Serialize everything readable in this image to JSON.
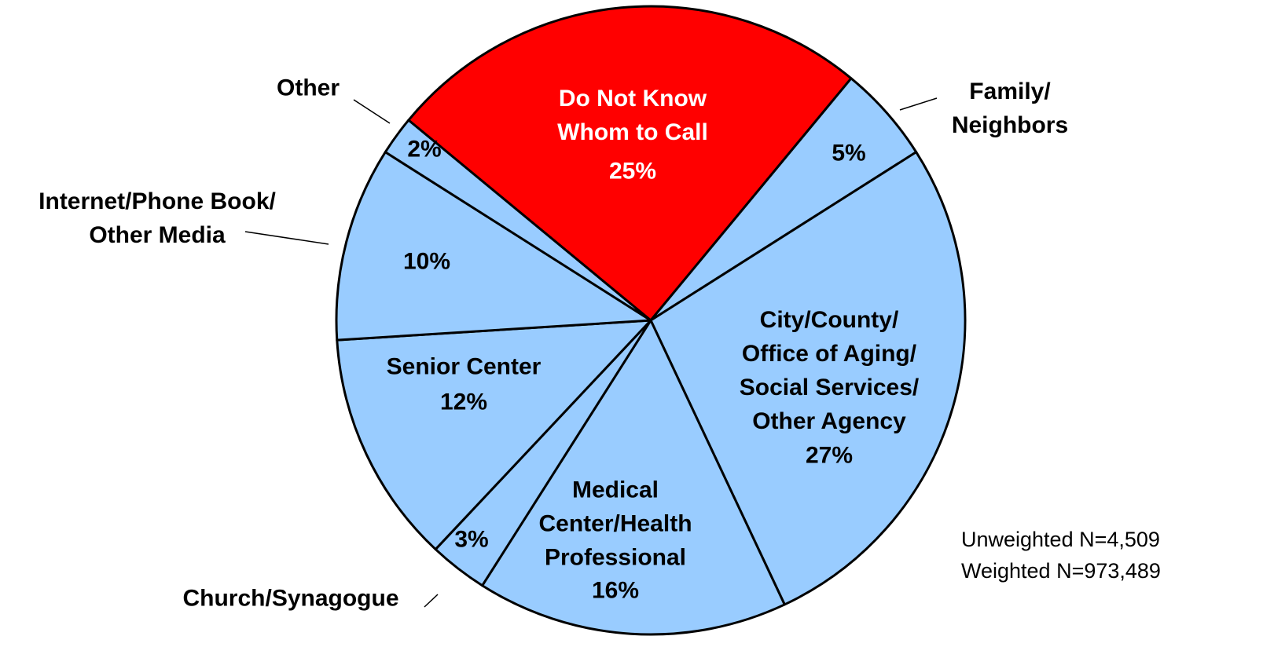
{
  "chart_data": {
    "type": "pie",
    "categories": [
      "Do Not Know\nWhom to Call",
      "Family/\nNeighbors",
      "City/County/\nOffice of Aging/\nSocial Services/\nOther Agency",
      "Medical\nCenter/Health\nProfessional",
      "Church/Synagogue",
      "Senior Center",
      "Internet/Phone Book/\nOther Media",
      "Other"
    ],
    "values": [
      25,
      5,
      27,
      16,
      3,
      12,
      10,
      2
    ],
    "value_labels": [
      "25%",
      "5%",
      "27%",
      "16%",
      "3%",
      "12%",
      "10%",
      "2%"
    ],
    "colors": [
      "#ff0000",
      "#99ccff",
      "#99ccff",
      "#99ccff",
      "#99ccff",
      "#99ccff",
      "#99ccff",
      "#99ccff"
    ],
    "notes": [
      "Unweighted N=4,509",
      "Weighted N=973,489"
    ]
  }
}
